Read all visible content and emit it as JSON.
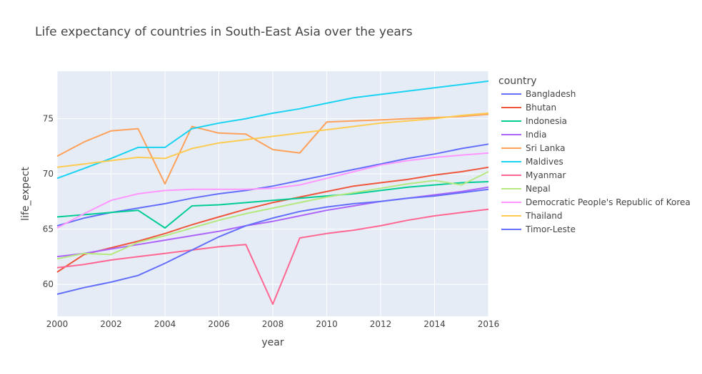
{
  "chart_data": {
    "type": "line",
    "title": "Life expectancy of countries in South-East Asia over the years",
    "xlabel": "year",
    "ylabel": "life_expect",
    "xlim": [
      2000,
      2016
    ],
    "ylim": [
      57.1,
      79.3
    ],
    "x_ticks": [
      2000,
      2002,
      2004,
      2006,
      2008,
      2010,
      2012,
      2014,
      2016
    ],
    "y_ticks": [
      60,
      65,
      70,
      75
    ],
    "x_tick_labels": [
      "2000",
      "2002",
      "2004",
      "2006",
      "2008",
      "2010",
      "2012",
      "2014",
      "2016"
    ],
    "y_tick_labels": [
      "60",
      "65",
      "70",
      "75"
    ],
    "grid": true,
    "legend_title": "country",
    "legend_position": "right",
    "x": [
      2000,
      2001,
      2002,
      2003,
      2004,
      2005,
      2006,
      2007,
      2008,
      2009,
      2010,
      2011,
      2012,
      2013,
      2014,
      2015,
      2016
    ],
    "series": [
      {
        "name": "Bangladesh",
        "color": "#636efa",
        "values": [
          65.3,
          66.0,
          66.5,
          66.9,
          67.3,
          67.8,
          68.2,
          68.5,
          68.9,
          69.4,
          69.9,
          70.4,
          70.9,
          71.4,
          71.8,
          72.3,
          72.7
        ]
      },
      {
        "name": "Bhutan",
        "color": "#EF553B",
        "values": [
          61.1,
          62.7,
          63.3,
          63.9,
          64.6,
          65.4,
          66.1,
          66.8,
          67.4,
          67.9,
          68.4,
          68.9,
          69.2,
          69.5,
          69.9,
          70.2,
          70.6
        ]
      },
      {
        "name": "Indonesia",
        "color": "#00cc96",
        "values": [
          66.1,
          66.3,
          66.5,
          66.7,
          65.1,
          67.1,
          67.2,
          67.4,
          67.6,
          67.8,
          68.0,
          68.2,
          68.5,
          68.8,
          69.0,
          69.2,
          69.3
        ]
      },
      {
        "name": "India",
        "color": "#ab63fa",
        "values": [
          62.5,
          62.8,
          63.2,
          63.6,
          64.0,
          64.4,
          64.8,
          65.3,
          65.7,
          66.2,
          66.7,
          67.1,
          67.5,
          67.8,
          68.1,
          68.4,
          68.8
        ]
      },
      {
        "name": "Sri Lanka",
        "color": "#FFA15A",
        "values": [
          71.6,
          72.9,
          73.9,
          74.1,
          69.1,
          74.3,
          73.7,
          73.6,
          72.2,
          71.9,
          74.7,
          74.8,
          74.9,
          75.0,
          75.1,
          75.2,
          75.4
        ]
      },
      {
        "name": "Maldives",
        "color": "#19d3f3",
        "values": [
          69.6,
          70.5,
          71.4,
          72.4,
          72.4,
          74.1,
          74.6,
          75.0,
          75.5,
          75.9,
          76.4,
          76.9,
          77.2,
          77.5,
          77.8,
          78.1,
          78.4
        ]
      },
      {
        "name": "Myanmar",
        "color": "#FF6692",
        "values": [
          61.5,
          61.8,
          62.2,
          62.5,
          62.8,
          63.1,
          63.4,
          63.6,
          58.2,
          64.2,
          64.6,
          64.9,
          65.3,
          65.8,
          66.2,
          66.5,
          66.8
        ]
      },
      {
        "name": "Nepal",
        "color": "#B6E880",
        "values": [
          62.3,
          62.8,
          62.7,
          63.8,
          64.4,
          65.1,
          65.8,
          66.4,
          66.9,
          67.4,
          67.9,
          68.3,
          68.7,
          69.1,
          69.4,
          69.0,
          70.2
        ]
      },
      {
        "name": "Democratic People's Republic of Korea",
        "color": "#FF97FF",
        "values": [
          65.1,
          66.4,
          67.6,
          68.2,
          68.5,
          68.6,
          68.6,
          68.6,
          68.7,
          69.0,
          69.6,
          70.2,
          70.8,
          71.2,
          71.5,
          71.7,
          71.9
        ]
      },
      {
        "name": "Thailand",
        "color": "#FECB52",
        "values": [
          70.6,
          70.9,
          71.2,
          71.5,
          71.4,
          72.3,
          72.8,
          73.1,
          73.4,
          73.7,
          74.0,
          74.3,
          74.6,
          74.8,
          75.0,
          75.3,
          75.5
        ]
      },
      {
        "name": "Timor-Leste",
        "color": "#636efa",
        "values": [
          59.1,
          59.7,
          60.2,
          60.8,
          61.9,
          63.1,
          64.3,
          65.3,
          66.0,
          66.6,
          67.0,
          67.3,
          67.5,
          67.8,
          68.0,
          68.3,
          68.6
        ]
      }
    ]
  }
}
